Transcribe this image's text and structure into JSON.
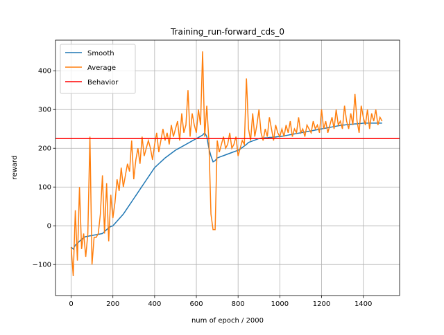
{
  "chart_data": {
    "type": "line",
    "title": "Training_run-forward_cds_0",
    "xlabel": "num of epoch / 2000",
    "ylabel": "reward",
    "x": [
      0,
      10,
      20,
      30,
      40,
      50,
      60,
      70,
      80,
      90,
      100,
      110,
      120,
      130,
      140,
      150,
      160,
      170,
      180,
      190,
      200,
      210,
      220,
      230,
      240,
      250,
      260,
      270,
      280,
      290,
      300,
      310,
      320,
      330,
      340,
      350,
      360,
      370,
      380,
      390,
      400,
      410,
      420,
      430,
      440,
      450,
      460,
      470,
      480,
      490,
      500,
      510,
      520,
      530,
      540,
      550,
      560,
      570,
      580,
      590,
      600,
      610,
      620,
      630,
      640,
      650,
      660,
      670,
      680,
      690,
      700,
      710,
      720,
      730,
      740,
      750,
      760,
      770,
      780,
      790,
      800,
      810,
      820,
      830,
      840,
      850,
      860,
      870,
      880,
      890,
      900,
      910,
      920,
      930,
      940,
      950,
      960,
      970,
      980,
      990,
      1000,
      1010,
      1020,
      1030,
      1040,
      1050,
      1060,
      1070,
      1080,
      1090,
      1100,
      1110,
      1120,
      1130,
      1140,
      1150,
      1160,
      1170,
      1180,
      1190,
      1200,
      1210,
      1220,
      1230,
      1240,
      1250,
      1260,
      1270,
      1280,
      1290,
      1300,
      1310,
      1320,
      1330,
      1340,
      1350,
      1360,
      1370,
      1380,
      1390,
      1400,
      1410,
      1420,
      1430,
      1440,
      1450,
      1460,
      1470,
      1480,
      1490
    ],
    "series": [
      {
        "name": "Smooth",
        "color": "#1f77b4",
        "values": [
          -55,
          -60,
          -50,
          -45,
          -40,
          -35,
          -30,
          -28,
          -27,
          -26,
          -25,
          -24,
          -23,
          -22,
          -21,
          -20,
          -15,
          -10,
          -5,
          -2,
          0,
          6,
          12,
          18,
          24,
          30,
          38,
          46,
          54,
          62,
          70,
          78,
          86,
          94,
          102,
          110,
          118,
          126,
          134,
          142,
          150,
          155,
          160,
          165,
          170,
          175,
          179,
          183,
          187,
          191,
          195,
          198,
          201,
          204,
          207,
          210,
          213,
          216,
          219,
          222,
          225,
          228,
          231,
          234,
          240,
          230,
          200,
          180,
          165,
          168,
          175,
          177,
          179,
          181,
          183,
          185,
          187,
          189,
          191,
          193,
          195,
          198,
          202,
          206,
          210,
          215,
          217,
          219,
          221,
          223,
          225,
          226,
          226,
          227,
          227,
          228,
          228,
          229,
          229,
          230,
          230,
          231,
          232,
          233,
          234,
          235,
          236,
          237,
          238,
          239,
          240,
          241,
          242,
          243,
          244,
          245,
          246,
          247,
          248,
          249,
          250,
          251,
          252,
          253,
          254,
          255,
          256,
          257,
          258,
          259,
          260,
          260,
          261,
          261,
          262,
          262,
          263,
          263,
          264,
          264,
          265,
          265,
          265,
          265,
          265,
          265,
          265,
          265,
          265,
          265
        ]
      },
      {
        "name": "Average",
        "color": "#ff7f0e",
        "values": [
          -55,
          -130,
          40,
          -90,
          100,
          -60,
          -20,
          -80,
          -20,
          230,
          -100,
          -30,
          -30,
          -20,
          30,
          130,
          -20,
          110,
          -40,
          80,
          20,
          60,
          120,
          90,
          150,
          100,
          130,
          160,
          140,
          220,
          120,
          170,
          200,
          160,
          230,
          180,
          200,
          220,
          200,
          170,
          210,
          240,
          190,
          220,
          250,
          220,
          240,
          210,
          260,
          230,
          250,
          270,
          220,
          290,
          240,
          260,
          350,
          230,
          290,
          260,
          240,
          300,
          260,
          450,
          230,
          310,
          220,
          30,
          -10,
          -10,
          220,
          190,
          210,
          230,
          200,
          210,
          240,
          200,
          210,
          230,
          180,
          200,
          220,
          210,
          380,
          250,
          220,
          290,
          230,
          260,
          300,
          240,
          220,
          250,
          230,
          280,
          250,
          220,
          260,
          240,
          230,
          250,
          230,
          260,
          240,
          270,
          230,
          250,
          240,
          280,
          240,
          250,
          230,
          260,
          250,
          240,
          270,
          250,
          260,
          240,
          300,
          250,
          270,
          240,
          260,
          280,
          250,
          300,
          260,
          270,
          250,
          310,
          270,
          250,
          290,
          260,
          340,
          270,
          240,
          310,
          280,
          260,
          300,
          250,
          290,
          270,
          300,
          260,
          280,
          270
        ]
      }
    ],
    "hlines": [
      {
        "name": "Behavior",
        "color": "#ff0000",
        "value": 225
      }
    ],
    "xlim": [
      -74.95,
      1573.95
    ],
    "ylim": [
      -180,
      479
    ],
    "xticks": [
      0,
      200,
      400,
      600,
      800,
      1000,
      1200,
      1400
    ],
    "yticks": [
      {
        "value": -100,
        "label": "−100"
      },
      0,
      100,
      200,
      300,
      400
    ],
    "grid": true,
    "legend": "upper left"
  }
}
